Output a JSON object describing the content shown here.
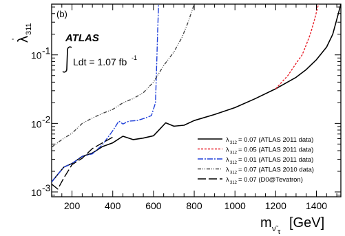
{
  "chart_data": {
    "type": "line",
    "panel_label": "(b)",
    "experiment": "ATLAS",
    "luminosity_text": "Ldt = 1.07 fb",
    "luminosity_sup": "-1",
    "ylabel": "λ",
    "ylabel_sub": "311",
    "ylabel_prime": "'",
    "xlabel": "m",
    "xlabel_sub": "ν̃",
    "xlabel_sub2": "τ",
    "xlabel_unit": "[GeV]",
    "y_scale": "log",
    "xlim": [
      100,
      1520
    ],
    "ylim": [
      0.00085,
      0.55
    ],
    "x_ticks": [
      200,
      400,
      600,
      800,
      1000,
      1200,
      1400
    ],
    "y_ticks": [
      {
        "value": 0.001,
        "base": "10",
        "exp": "-3"
      },
      {
        "value": 0.01,
        "base": "10",
        "exp": "-2"
      },
      {
        "value": 0.1,
        "base": "10",
        "exp": "-1"
      }
    ],
    "legend_position": "bottom-right",
    "series": [
      {
        "name": "= 0.07 (ATLAS 2011 data)",
        "legend_sub": "312",
        "color": "#000000",
        "dash": "",
        "x": [
          100,
          130,
          160,
          200,
          250,
          300,
          350,
          400,
          450,
          500,
          550,
          600,
          630,
          660,
          700,
          750,
          800,
          900,
          1000,
          1100,
          1200,
          1300,
          1350,
          1400,
          1450,
          1480,
          1500,
          1520
        ],
        "y": [
          0.0014,
          0.0018,
          0.0023,
          0.0026,
          0.0033,
          0.0037,
          0.0046,
          0.0052,
          0.0065,
          0.0058,
          0.0061,
          0.0066,
          0.0082,
          0.0102,
          0.0091,
          0.0094,
          0.011,
          0.0135,
          0.017,
          0.023,
          0.032,
          0.047,
          0.061,
          0.085,
          0.13,
          0.2,
          0.33,
          0.55
        ]
      },
      {
        "name": "= 0.05 (ATLAS 2011 data)",
        "legend_sub": "312",
        "color": "#e8202a",
        "dash": "3,2",
        "x": [
          1200,
          1260,
          1300,
          1330,
          1350,
          1370,
          1390,
          1410
        ],
        "y": [
          0.032,
          0.05,
          0.075,
          0.1,
          0.14,
          0.2,
          0.32,
          0.55
        ]
      },
      {
        "name": "= 0.01 (ATLAS 2011 data)",
        "legend_sub": "312",
        "color": "#1f3fd8",
        "dash": "8,2,2,2",
        "x": [
          100,
          130,
          160,
          200,
          250,
          300,
          350,
          400,
          430,
          450,
          480,
          520,
          560,
          590,
          610,
          615,
          620,
          625
        ],
        "y": [
          0.0014,
          0.0018,
          0.0023,
          0.0026,
          0.0033,
          0.0036,
          0.0049,
          0.0078,
          0.0108,
          0.0098,
          0.0108,
          0.011,
          0.012,
          0.013,
          0.02,
          0.06,
          0.2,
          0.55
        ]
      },
      {
        "name": "= 0.07 (ATLAS 2010 data)",
        "legend_sub": "312",
        "color": "#444444",
        "dash": "5,2,1,2,1,2",
        "x": [
          100,
          150,
          200,
          250,
          300,
          350,
          400,
          450,
          500,
          550,
          600,
          650,
          700,
          740,
          770,
          790,
          800
        ],
        "y": [
          0.0045,
          0.0058,
          0.0072,
          0.01,
          0.012,
          0.014,
          0.016,
          0.02,
          0.023,
          0.028,
          0.04,
          0.07,
          0.11,
          0.18,
          0.3,
          0.45,
          0.55
        ]
      },
      {
        "name": "= 0.07 (D0@Tevatron)",
        "legend_sub": "312",
        "color": "#000000",
        "dash": "12,4",
        "x": [
          100,
          130,
          160,
          200,
          250,
          300,
          350,
          400
        ],
        "y": [
          0.0013,
          0.0011,
          0.0016,
          0.0025,
          0.0031,
          0.0043,
          0.0052,
          0.0063
        ]
      }
    ]
  }
}
